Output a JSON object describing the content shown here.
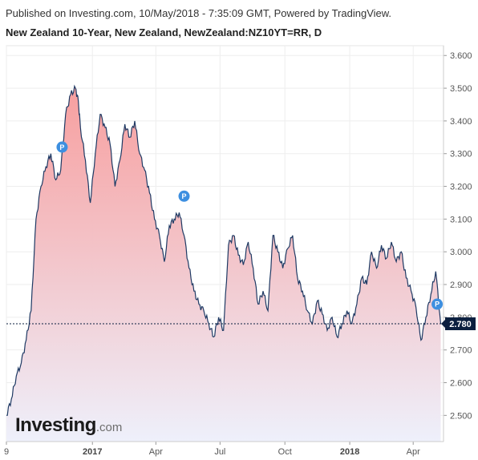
{
  "header": {
    "publisher_line": "Published on Investing.com, 10/May/2018 - 7:35:09 GMT, Powered by TradingView.",
    "series_title": "New Zealand 10-Year, New Zealand, NewZealand:NZ10YT=RR, D"
  },
  "logo": {
    "main": "Investing",
    "suffix": ".com"
  },
  "colors": {
    "line": "#1f3a64",
    "area_top": "#f79a9a",
    "area_bottom": "#eef0fb",
    "price_tag_bg": "#0b1f3f",
    "marker": "#3d8fe0",
    "grid": "#eeeeee",
    "axis": "#cccccc"
  },
  "chart_data": {
    "type": "area",
    "title": "New Zealand 10-Year, New Zealand, NewZealand:NZ10YT=RR, D",
    "ylim": [
      2.42,
      3.63
    ],
    "y_ticks": [
      "2.500",
      "2.600",
      "2.700",
      "2.800",
      "2.900",
      "3.000",
      "3.100",
      "3.200",
      "3.300",
      "3.400",
      "3.500",
      "3.600"
    ],
    "x_ticks": [
      {
        "label": "9",
        "date": "2016-09-01",
        "bold": false
      },
      {
        "label": "2017",
        "date": "2017-01-01",
        "bold": true
      },
      {
        "label": "Apr",
        "date": "2017-04-01",
        "bold": false
      },
      {
        "label": "Jul",
        "date": "2017-07-01",
        "bold": false
      },
      {
        "label": "Oct",
        "date": "2017-10-01",
        "bold": false
      },
      {
        "label": "2018",
        "date": "2018-01-01",
        "bold": true
      },
      {
        "label": "Apr",
        "date": "2018-04-01",
        "bold": false
      }
    ],
    "x_range": [
      "2016-09-01",
      "2018-05-14"
    ],
    "current_value": "2.780",
    "current_value_y": 2.78,
    "grid": true,
    "markers": [
      {
        "label": "P",
        "date": "2016-11-19",
        "y": 3.32
      },
      {
        "label": "P",
        "date": "2017-05-11",
        "y": 3.17
      },
      {
        "label": "P",
        "date": "2018-05-05",
        "y": 2.84
      }
    ],
    "series": [
      {
        "x": [
          "2016-09-01",
          "2016-09-08",
          "2016-09-15",
          "2016-09-22",
          "2016-09-29",
          "2016-10-06",
          "2016-10-13",
          "2016-10-20",
          "2016-10-27",
          "2016-11-03",
          "2016-11-10",
          "2016-11-17",
          "2016-11-24",
          "2016-12-01",
          "2016-12-08",
          "2016-12-12",
          "2016-12-15",
          "2016-12-22",
          "2016-12-29",
          "2017-01-05",
          "2017-01-12",
          "2017-01-19",
          "2017-01-26",
          "2017-02-02",
          "2017-02-09",
          "2017-02-16",
          "2017-02-23",
          "2017-03-02",
          "2017-03-09",
          "2017-03-16",
          "2017-03-23",
          "2017-03-30",
          "2017-04-06",
          "2017-04-13",
          "2017-04-20",
          "2017-04-27",
          "2017-05-04",
          "2017-05-11",
          "2017-05-18",
          "2017-05-25",
          "2017-06-01",
          "2017-06-08",
          "2017-06-15",
          "2017-06-22",
          "2017-06-29",
          "2017-07-06",
          "2017-07-13",
          "2017-07-20",
          "2017-07-27",
          "2017-08-03",
          "2017-08-10",
          "2017-08-17",
          "2017-08-24",
          "2017-08-31",
          "2017-09-07",
          "2017-09-14",
          "2017-09-21",
          "2017-09-28",
          "2017-10-05",
          "2017-10-12",
          "2017-10-19",
          "2017-10-26",
          "2017-11-02",
          "2017-11-09",
          "2017-11-16",
          "2017-11-23",
          "2017-11-30",
          "2017-12-07",
          "2017-12-14",
          "2017-12-21",
          "2017-12-28",
          "2018-01-04",
          "2018-01-11",
          "2018-01-18",
          "2018-01-25",
          "2018-02-01",
          "2018-02-08",
          "2018-02-15",
          "2018-02-22",
          "2018-03-01",
          "2018-03-08",
          "2018-03-15",
          "2018-03-22",
          "2018-03-29",
          "2018-04-05",
          "2018-04-12",
          "2018-04-19",
          "2018-04-26",
          "2018-05-03",
          "2018-05-10"
        ],
        "values": [
          2.5,
          2.55,
          2.62,
          2.66,
          2.73,
          2.82,
          3.1,
          3.2,
          3.26,
          3.3,
          3.22,
          3.25,
          3.42,
          3.48,
          3.5,
          3.46,
          3.38,
          3.28,
          3.15,
          3.3,
          3.42,
          3.38,
          3.33,
          3.2,
          3.28,
          3.39,
          3.35,
          3.4,
          3.3,
          3.25,
          3.18,
          3.1,
          3.05,
          2.97,
          3.08,
          3.1,
          3.12,
          3.05,
          2.95,
          2.88,
          2.84,
          2.82,
          2.78,
          2.74,
          2.8,
          2.76,
          3.02,
          3.05,
          2.99,
          2.96,
          3.03,
          2.95,
          2.84,
          2.88,
          2.82,
          3.05,
          3.0,
          2.95,
          3.01,
          3.05,
          2.92,
          2.88,
          2.82,
          2.78,
          2.85,
          2.81,
          2.76,
          2.8,
          2.74,
          2.78,
          2.82,
          2.78,
          2.84,
          2.92,
          2.9,
          3.0,
          2.95,
          3.02,
          2.98,
          3.03,
          2.97,
          3.0,
          2.92,
          2.88,
          2.83,
          2.73,
          2.8,
          2.87,
          2.94,
          2.78
        ]
      }
    ]
  }
}
